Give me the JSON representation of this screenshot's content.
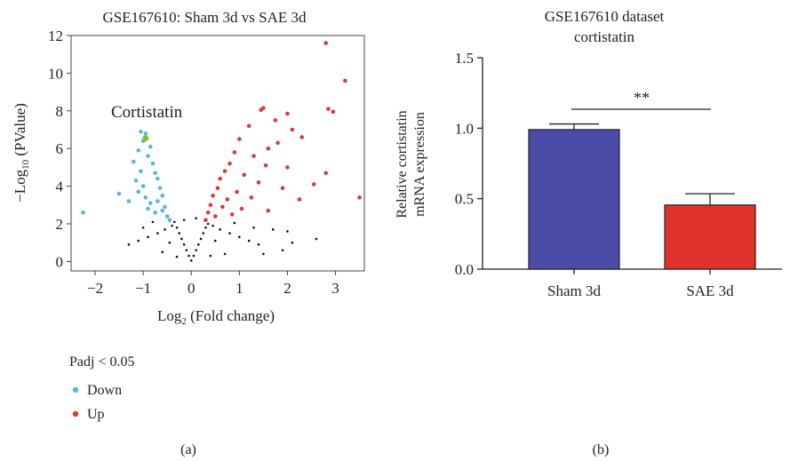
{
  "panel_a": {
    "label": "(a)",
    "legend": {
      "title": "Padj < 0.05",
      "items": [
        {
          "name": "Down",
          "color": "#5bb4dc"
        },
        {
          "name": "Up",
          "color": "#d93a3a"
        }
      ]
    },
    "annotation": {
      "text": "Cortistatin",
      "x": -0.95,
      "y": 6.55,
      "color": "#7ec12f"
    }
  },
  "panel_b": {
    "label": "(b)",
    "significance": "**"
  },
  "chart_data": [
    {
      "type": "scatter",
      "title": "GSE167610: Sham 3d vs SAE 3d",
      "xlabel": "Log₂ (Fold change)",
      "ylabel": "−Log₁₀ (PValue)",
      "xlim": [
        -2.5,
        3.6
      ],
      "ylim": [
        -0.5,
        12
      ],
      "xticks": [
        -2,
        -1,
        0,
        1,
        2,
        3
      ],
      "yticks": [
        0,
        2,
        4,
        6,
        8,
        10,
        12
      ],
      "grid": false,
      "legend_position": "bottom-left",
      "series": [
        {
          "name": "Down",
          "color": "#5bb4dc",
          "points": [
            [
              -2.25,
              2.6
            ],
            [
              -1.5,
              3.6
            ],
            [
              -1.05,
              6.9
            ],
            [
              -1.0,
              6.4
            ],
            [
              -0.95,
              6.8
            ],
            [
              -1.1,
              5.9
            ],
            [
              -1.2,
              5.3
            ],
            [
              -1.05,
              4.8
            ],
            [
              -0.9,
              5.6
            ],
            [
              -0.85,
              6.1
            ],
            [
              -1.15,
              4.3
            ],
            [
              -1.0,
              4.0
            ],
            [
              -0.8,
              5.2
            ],
            [
              -0.75,
              4.7
            ],
            [
              -1.1,
              3.7
            ],
            [
              -0.95,
              3.4
            ],
            [
              -0.7,
              4.4
            ],
            [
              -0.65,
              3.9
            ],
            [
              -0.85,
              3.1
            ],
            [
              -0.6,
              3.5
            ],
            [
              -0.55,
              2.9
            ],
            [
              -0.75,
              2.6
            ],
            [
              -0.5,
              2.4
            ],
            [
              -0.45,
              2.2
            ],
            [
              -0.9,
              2.8
            ],
            [
              -0.7,
              3.2
            ],
            [
              -1.3,
              3.2
            ],
            [
              -0.6,
              2.7
            ]
          ]
        },
        {
          "name": "Up",
          "color": "#d93a3a",
          "points": [
            [
              2.8,
              11.6
            ],
            [
              3.2,
              9.6
            ],
            [
              2.85,
              8.1
            ],
            [
              2.95,
              7.95
            ],
            [
              1.5,
              8.15
            ],
            [
              1.45,
              8.05
            ],
            [
              2.0,
              7.85
            ],
            [
              1.75,
              7.5
            ],
            [
              1.2,
              7.2
            ],
            [
              2.1,
              7.0
            ],
            [
              2.3,
              6.6
            ],
            [
              1.0,
              6.5
            ],
            [
              1.8,
              6.3
            ],
            [
              1.6,
              6.0
            ],
            [
              0.9,
              5.8
            ],
            [
              1.3,
              5.6
            ],
            [
              0.8,
              5.2
            ],
            [
              1.55,
              5.1
            ],
            [
              2.0,
              5.0
            ],
            [
              0.7,
              4.8
            ],
            [
              1.1,
              4.6
            ],
            [
              2.8,
              4.7
            ],
            [
              0.6,
              4.4
            ],
            [
              1.4,
              4.2
            ],
            [
              0.55,
              3.9
            ],
            [
              0.95,
              3.7
            ],
            [
              1.9,
              3.9
            ],
            [
              2.55,
              4.1
            ],
            [
              0.45,
              3.5
            ],
            [
              0.75,
              3.3
            ],
            [
              1.25,
              3.4
            ],
            [
              0.4,
              3.0
            ],
            [
              0.65,
              2.9
            ],
            [
              1.05,
              2.8
            ],
            [
              2.25,
              3.3
            ],
            [
              3.5,
              3.4
            ],
            [
              0.35,
              2.6
            ],
            [
              0.5,
              2.4
            ],
            [
              0.85,
              2.5
            ],
            [
              1.6,
              2.7
            ],
            [
              0.3,
              2.2
            ]
          ]
        },
        {
          "name": "NS",
          "color": "#111111",
          "points": [
            [
              0.0,
              0.05
            ],
            [
              -0.05,
              0.3
            ],
            [
              0.05,
              0.3
            ],
            [
              -0.1,
              0.6
            ],
            [
              0.1,
              0.6
            ],
            [
              -0.15,
              0.9
            ],
            [
              0.15,
              0.9
            ],
            [
              -0.2,
              1.2
            ],
            [
              0.2,
              1.2
            ],
            [
              -0.25,
              1.5
            ],
            [
              0.25,
              1.5
            ],
            [
              -0.3,
              1.8
            ],
            [
              0.3,
              1.8
            ],
            [
              -0.35,
              2.1
            ],
            [
              0.35,
              2.0
            ],
            [
              -0.4,
              1.9
            ],
            [
              0.45,
              1.9
            ],
            [
              -0.55,
              1.7
            ],
            [
              0.6,
              1.7
            ],
            [
              -0.7,
              1.5
            ],
            [
              0.8,
              1.5
            ],
            [
              -0.9,
              1.3
            ],
            [
              1.0,
              1.3
            ],
            [
              -1.1,
              1.1
            ],
            [
              1.2,
              1.1
            ],
            [
              1.4,
              0.9
            ],
            [
              -1.3,
              0.9
            ],
            [
              1.7,
              1.7
            ],
            [
              2.0,
              1.6
            ],
            [
              1.9,
              0.6
            ],
            [
              2.1,
              1.0
            ],
            [
              2.6,
              1.2
            ],
            [
              1.5,
              0.4
            ],
            [
              -0.6,
              0.5
            ],
            [
              0.7,
              0.4
            ],
            [
              -0.45,
              1.0
            ],
            [
              0.5,
              1.1
            ],
            [
              -0.8,
              2.1
            ],
            [
              0.9,
              2.05
            ],
            [
              -0.15,
              2.2
            ],
            [
              0.1,
              2.3
            ],
            [
              1.3,
              1.8
            ],
            [
              -1.0,
              1.8
            ],
            [
              0.4,
              0.3
            ],
            [
              -0.3,
              0.25
            ]
          ]
        },
        {
          "name": "Cortistatin",
          "color": "#7ec12f",
          "points": [
            [
              -0.95,
              6.55
            ]
          ]
        }
      ]
    },
    {
      "type": "bar",
      "title": "GSE167610 dataset cortistatin",
      "title_lines": [
        "GSE167610 dataset",
        "cortistatin"
      ],
      "xlabel": "",
      "ylabel": "Relative cortistatin mRNA expression",
      "ylabel_lines": [
        "Relative cortistatin",
        "mRNA expression"
      ],
      "ylim": [
        0,
        1.5
      ],
      "yticks": [
        "0.0",
        "0.5",
        "1.0",
        "1.5"
      ],
      "categories": [
        "Sham 3d",
        "SAE 3d"
      ],
      "values": [
        0.99,
        0.455
      ],
      "errors": [
        0.04,
        0.08
      ],
      "colors": [
        "#4b4ba8",
        "#e0312a"
      ],
      "grid": false
    }
  ]
}
